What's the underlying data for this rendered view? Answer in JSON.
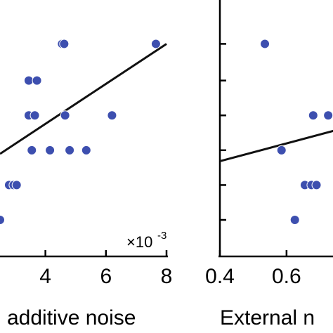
{
  "colors": {
    "point": "#3d4faf",
    "line": "#111111",
    "axis": "#000000"
  },
  "chart_data": [
    {
      "type": "scatter",
      "xlabel": "additive noise",
      "x_multiplier": "×10",
      "x_multiplier_exponent": "-3",
      "xlim": [
        2.5,
        8
      ],
      "xticks": [
        4,
        6,
        8
      ],
      "xtick_labels": [
        "4",
        "6",
        "8"
      ],
      "ylim": [
        0,
        1
      ],
      "points": [
        {
          "x": 4.55,
          "y": 0.96
        },
        {
          "x": 4.62,
          "y": 0.96
        },
        {
          "x": 7.65,
          "y": 0.96
        },
        {
          "x": 3.45,
          "y": 0.76
        },
        {
          "x": 3.72,
          "y": 0.76
        },
        {
          "x": 3.45,
          "y": 0.57
        },
        {
          "x": 3.65,
          "y": 0.57
        },
        {
          "x": 4.65,
          "y": 0.57
        },
        {
          "x": 6.2,
          "y": 0.57
        },
        {
          "x": 3.55,
          "y": 0.38
        },
        {
          "x": 4.15,
          "y": 0.38
        },
        {
          "x": 4.8,
          "y": 0.38
        },
        {
          "x": 5.35,
          "y": 0.38
        },
        {
          "x": 2.8,
          "y": 0.19
        },
        {
          "x": 2.95,
          "y": 0.19
        },
        {
          "x": 3.05,
          "y": 0.19
        },
        {
          "x": 2.5,
          "y": 0.0
        }
      ],
      "fit_line": [
        {
          "x": 2.5,
          "y": 0.36
        },
        {
          "x": 8.0,
          "y": 0.96
        }
      ]
    },
    {
      "type": "scatter",
      "xlabel": "External n",
      "xlim": [
        0.4,
        0.75
      ],
      "xticks": [
        0.4,
        0.6
      ],
      "xtick_labels": [
        "0.4",
        "0.6"
      ],
      "ylim": [
        0,
        1
      ],
      "yticks": [
        0.0,
        0.19,
        0.38,
        0.57,
        0.76,
        0.96
      ],
      "points": [
        {
          "x": 0.535,
          "y": 0.96
        },
        {
          "x": 0.68,
          "y": 0.57
        },
        {
          "x": 0.725,
          "y": 0.57
        },
        {
          "x": 0.585,
          "y": 0.38
        },
        {
          "x": 0.655,
          "y": 0.19
        },
        {
          "x": 0.675,
          "y": 0.19
        },
        {
          "x": 0.69,
          "y": 0.19
        },
        {
          "x": 0.625,
          "y": 0.0
        }
      ],
      "fit_line": [
        {
          "x": 0.4,
          "y": 0.32
        },
        {
          "x": 0.75,
          "y": 0.49
        }
      ]
    }
  ]
}
